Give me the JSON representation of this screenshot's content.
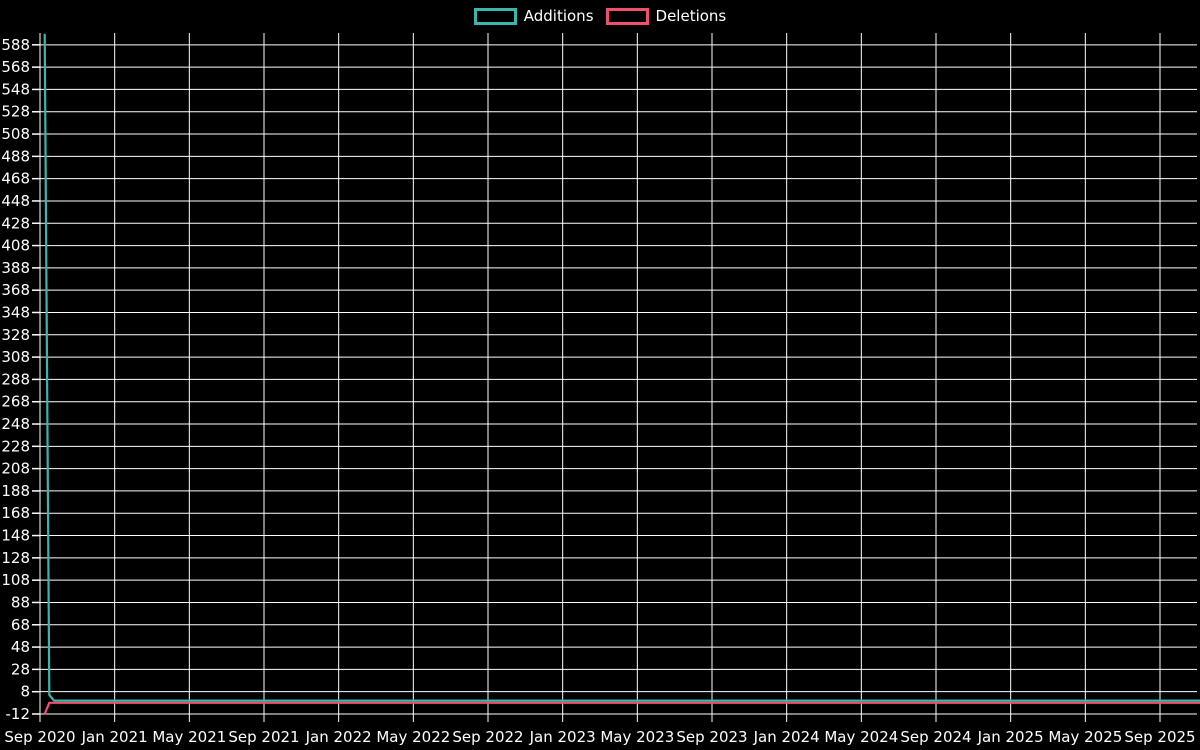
{
  "legend": {
    "items": [
      {
        "label": "Additions",
        "color": "#3db4ac"
      },
      {
        "label": "Deletions",
        "color": "#ef506e"
      }
    ]
  },
  "chart_data": {
    "type": "line",
    "title": "",
    "xlabel": "",
    "ylabel": "",
    "background_color": "#000000",
    "grid": true,
    "grid_color": "#ffffff",
    "text_color": "#ffffff",
    "legend_position": "top-center",
    "x_tick_labels": [
      "Sep 2020",
      "Jan 2021",
      "May 2021",
      "Sep 2021",
      "Jan 2022",
      "May 2022",
      "Sep 2022",
      "Jan 2023",
      "May 2023",
      "Sep 2023",
      "Jan 2024",
      "May 2024",
      "Sep 2024",
      "Jan 2025",
      "May 2025",
      "Sep 2025"
    ],
    "x_tick_interval_months": 4,
    "y_ticks": [
      588,
      568,
      548,
      528,
      508,
      488,
      468,
      448,
      428,
      408,
      388,
      368,
      348,
      328,
      308,
      288,
      268,
      248,
      228,
      208,
      188,
      168,
      148,
      128,
      108,
      88,
      68,
      48,
      28,
      8,
      -12
    ],
    "ylim": [
      -13.8,
      598.6
    ],
    "xlim_months": [
      0,
      62.2
    ],
    "series": [
      {
        "name": "Additions",
        "color": "#3db4ac",
        "points": [
          {
            "month": 0.25,
            "value": 598
          },
          {
            "month": 0.5,
            "value": 5
          },
          {
            "month": 0.75,
            "value": 0
          },
          {
            "month": 62.2,
            "value": 0
          }
        ]
      },
      {
        "name": "Deletions",
        "color": "#ef506e",
        "points": [
          {
            "month": 0.25,
            "value": -12
          },
          {
            "month": 0.5,
            "value": -2
          },
          {
            "month": 62.2,
            "value": -2
          }
        ]
      }
    ]
  }
}
